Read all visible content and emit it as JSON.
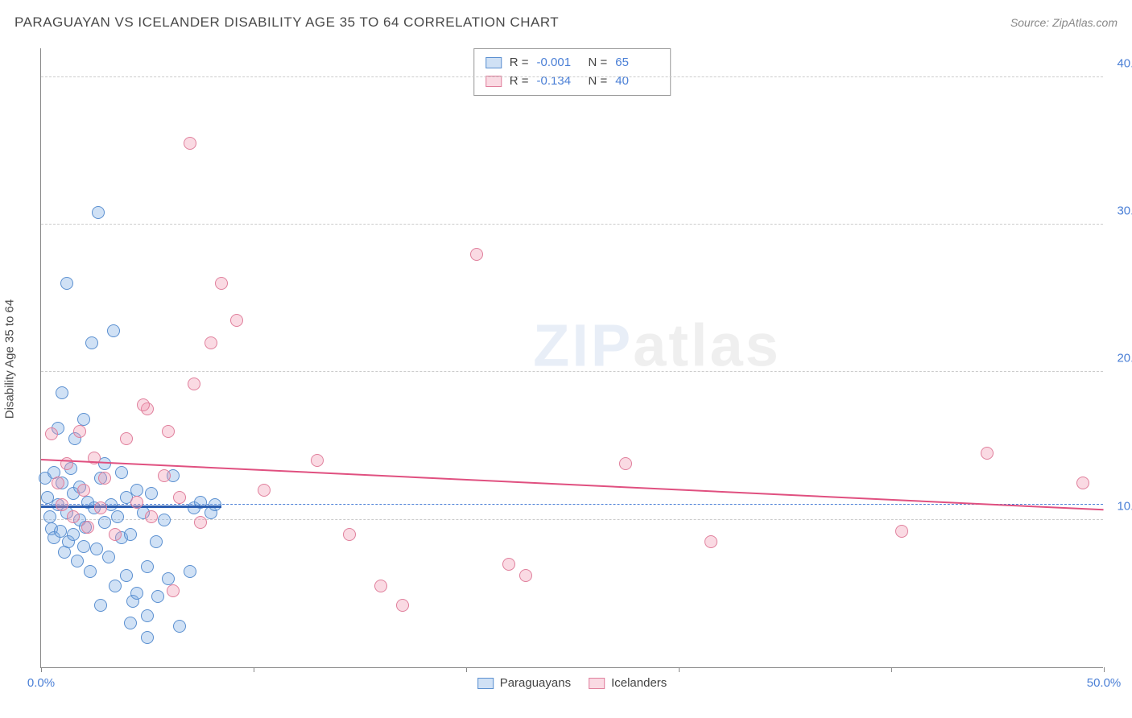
{
  "title": "PARAGUAYAN VS ICELANDER DISABILITY AGE 35 TO 64 CORRELATION CHART",
  "source": "Source: ZipAtlas.com",
  "ylabel": "Disability Age 35 to 64",
  "watermark_a": "ZIP",
  "watermark_b": "atlas",
  "chart": {
    "type": "scatter",
    "xlim": [
      0,
      50
    ],
    "ylim": [
      0,
      42
    ],
    "x_ticks": [
      0,
      10,
      20,
      30,
      40,
      50
    ],
    "x_tick_labels": [
      "0.0%",
      "",
      "",
      "",
      "",
      "50.0%"
    ],
    "y_ticks": [
      10,
      20,
      30,
      40
    ],
    "y_tick_labels": [
      "10.0%",
      "20.0%",
      "30.0%",
      "40.0%"
    ],
    "background": "#ffffff",
    "grid_color": "#cccccc",
    "axis_color": "#888888",
    "label_color": "#4a7fd6",
    "marker_radius": 8,
    "dashed_ref_y": 11.0,
    "series": [
      {
        "name": "Paraguayans",
        "fill": "rgba(120,170,225,0.35)",
        "stroke": "#5a8fd0",
        "trend": {
          "x1": 0,
          "y1": 11.0,
          "x2": 8.5,
          "y2": 11.0,
          "color": "#2a5db0",
          "width": 3
        },
        "R": "-0.001",
        "N": "65",
        "points": [
          [
            0.2,
            12.8
          ],
          [
            0.3,
            11.5
          ],
          [
            0.4,
            10.2
          ],
          [
            0.5,
            9.4
          ],
          [
            0.6,
            13.2
          ],
          [
            0.6,
            8.8
          ],
          [
            0.8,
            16.2
          ],
          [
            0.8,
            11.0
          ],
          [
            0.9,
            9.2
          ],
          [
            1.0,
            12.5
          ],
          [
            1.0,
            18.6
          ],
          [
            1.1,
            7.8
          ],
          [
            1.2,
            10.5
          ],
          [
            1.2,
            26.0
          ],
          [
            1.3,
            8.5
          ],
          [
            1.4,
            13.5
          ],
          [
            1.5,
            9.0
          ],
          [
            1.5,
            11.8
          ],
          [
            1.6,
            15.5
          ],
          [
            1.7,
            7.2
          ],
          [
            1.8,
            10.0
          ],
          [
            1.8,
            12.2
          ],
          [
            2.0,
            8.2
          ],
          [
            2.0,
            16.8
          ],
          [
            2.1,
            9.5
          ],
          [
            2.2,
            11.2
          ],
          [
            2.3,
            6.5
          ],
          [
            2.4,
            22.0
          ],
          [
            2.5,
            10.8
          ],
          [
            2.6,
            8.0
          ],
          [
            2.7,
            30.8
          ],
          [
            2.8,
            12.8
          ],
          [
            2.8,
            4.2
          ],
          [
            3.0,
            9.8
          ],
          [
            3.0,
            13.8
          ],
          [
            3.2,
            7.5
          ],
          [
            3.3,
            11.0
          ],
          [
            3.4,
            22.8
          ],
          [
            3.5,
            5.5
          ],
          [
            3.6,
            10.2
          ],
          [
            3.8,
            8.8
          ],
          [
            3.8,
            13.2
          ],
          [
            4.0,
            6.2
          ],
          [
            4.0,
            11.5
          ],
          [
            4.2,
            9.0
          ],
          [
            4.3,
            4.5
          ],
          [
            4.5,
            12.0
          ],
          [
            4.5,
            5.0
          ],
          [
            4.8,
            10.5
          ],
          [
            5.0,
            6.8
          ],
          [
            5.0,
            3.5
          ],
          [
            5.2,
            11.8
          ],
          [
            5.4,
            8.5
          ],
          [
            5.5,
            4.8
          ],
          [
            5.8,
            10.0
          ],
          [
            6.0,
            6.0
          ],
          [
            6.2,
            13.0
          ],
          [
            6.5,
            2.8
          ],
          [
            7.0,
            6.5
          ],
          [
            7.2,
            10.8
          ],
          [
            7.5,
            11.2
          ],
          [
            8.0,
            10.5
          ],
          [
            8.2,
            11.0
          ],
          [
            5.0,
            2.0
          ],
          [
            4.2,
            3.0
          ]
        ]
      },
      {
        "name": "Icelanders",
        "fill": "rgba(240,150,175,0.35)",
        "stroke": "#e07f9c",
        "trend": {
          "x1": 0,
          "y1": 14.2,
          "x2": 50,
          "y2": 10.8,
          "color": "#e05080",
          "width": 2
        },
        "R": "-0.134",
        "N": "40",
        "points": [
          [
            0.5,
            15.8
          ],
          [
            0.8,
            12.5
          ],
          [
            1.0,
            11.0
          ],
          [
            1.2,
            13.8
          ],
          [
            1.5,
            10.2
          ],
          [
            1.8,
            16.0
          ],
          [
            2.0,
            12.0
          ],
          [
            2.2,
            9.5
          ],
          [
            2.5,
            14.2
          ],
          [
            2.8,
            10.8
          ],
          [
            3.0,
            12.8
          ],
          [
            3.5,
            9.0
          ],
          [
            4.0,
            15.5
          ],
          [
            4.5,
            11.2
          ],
          [
            5.0,
            17.5
          ],
          [
            5.2,
            10.2
          ],
          [
            5.8,
            13.0
          ],
          [
            6.0,
            16.0
          ],
          [
            6.2,
            5.2
          ],
          [
            6.5,
            11.5
          ],
          [
            7.0,
            35.5
          ],
          [
            7.2,
            19.2
          ],
          [
            7.5,
            9.8
          ],
          [
            8.0,
            22.0
          ],
          [
            8.5,
            26.0
          ],
          [
            9.2,
            23.5
          ],
          [
            10.5,
            12.0
          ],
          [
            13.0,
            14.0
          ],
          [
            14.5,
            9.0
          ],
          [
            16.0,
            5.5
          ],
          [
            17.0,
            4.2
          ],
          [
            20.5,
            28.0
          ],
          [
            22.0,
            7.0
          ],
          [
            22.8,
            6.2
          ],
          [
            27.5,
            13.8
          ],
          [
            31.5,
            8.5
          ],
          [
            40.5,
            9.2
          ],
          [
            44.5,
            14.5
          ],
          [
            49.0,
            12.5
          ],
          [
            4.8,
            17.8
          ]
        ]
      }
    ]
  },
  "stats_box": {
    "rows": [
      {
        "swatch_fill": "rgba(120,170,225,0.35)",
        "swatch_stroke": "#5a8fd0",
        "R_lbl": "R =",
        "R_val": "-0.001",
        "N_lbl": "N =",
        "N_val": "65"
      },
      {
        "swatch_fill": "rgba(240,150,175,0.35)",
        "swatch_stroke": "#e07f9c",
        "R_lbl": "R =",
        "R_val": "-0.134",
        "N_lbl": "N =",
        "N_val": "40"
      }
    ]
  },
  "legend": [
    {
      "label": "Paraguayans",
      "fill": "rgba(120,170,225,0.35)",
      "stroke": "#5a8fd0"
    },
    {
      "label": "Icelanders",
      "fill": "rgba(240,150,175,0.35)",
      "stroke": "#e07f9c"
    }
  ]
}
